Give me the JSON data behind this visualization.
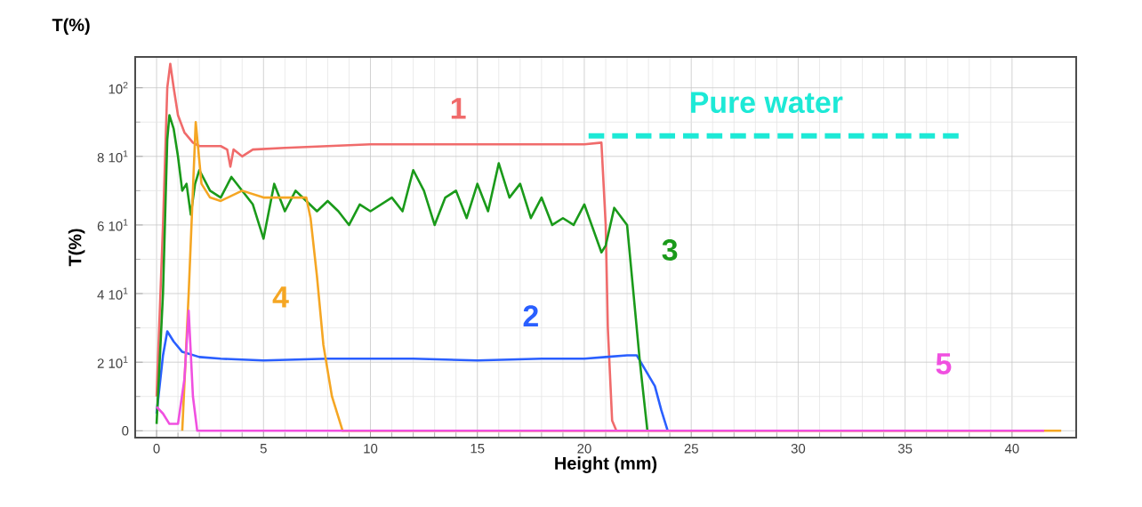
{
  "chart_data": {
    "type": "line",
    "xlabel": "Height (mm)",
    "ylabel": "T(%)",
    "annotations": [
      "T(%)"
    ],
    "xlim": [
      -1,
      43
    ],
    "ylim": [
      -2,
      109
    ],
    "xticks": [
      0,
      5,
      10,
      15,
      20,
      25,
      30,
      35,
      40
    ],
    "yticks": [
      0,
      {
        "value": 20,
        "label": "2 10$^{1}$"
      },
      {
        "value": 40,
        "label": "4 10$^{1}$"
      },
      {
        "value": 60,
        "label": "6 10$^{1}$"
      },
      {
        "value": 80,
        "label": "8 10$^{1}$"
      },
      {
        "value": 100,
        "label": "10$^{2}$"
      }
    ],
    "grid": true,
    "marker": "none",
    "line_style": "solid",
    "series": [
      {
        "name": "1",
        "color": "#f06b6b",
        "x": [
          0,
          0.3,
          0.5,
          0.64,
          0.8,
          1.0,
          1.3,
          1.7,
          2,
          3,
          3.3,
          3.45,
          3.6,
          4,
          4.5,
          6,
          8,
          10,
          12,
          15,
          18,
          20,
          20.8,
          21.0,
          21.1,
          21.3,
          21.5
        ],
        "values": [
          10,
          60,
          100,
          107,
          100,
          92,
          87,
          84,
          83,
          83,
          82,
          77,
          82,
          80,
          82,
          82.5,
          83,
          83.5,
          83.5,
          83.5,
          83.5,
          83.5,
          84,
          60,
          30,
          3,
          0
        ]
      },
      {
        "name": "2",
        "color": "#2a5fff",
        "x": [
          0,
          0.3,
          0.5,
          0.8,
          1.2,
          2,
          3,
          5,
          8,
          12,
          15,
          18,
          20,
          21,
          22,
          22.45,
          23.3,
          23.6,
          23.9
        ],
        "values": [
          5,
          22,
          29,
          26,
          23,
          21.5,
          21,
          20.5,
          21,
          21,
          20.5,
          21,
          21,
          21.5,
          22,
          22,
          13,
          6,
          0
        ]
      },
      {
        "name": "3",
        "color": "#1a9a1a",
        "x": [
          0,
          0.3,
          0.5,
          0.6,
          0.8,
          1,
          1.2,
          1.4,
          1.6,
          1.8,
          2,
          2.5,
          3,
          3.5,
          4,
          4.5,
          5,
          5.5,
          6,
          6.5,
          7,
          7.5,
          8,
          8.5,
          9,
          9.5,
          10,
          11,
          11.5,
          12,
          12.5,
          13,
          13.5,
          14,
          14.5,
          15,
          15.5,
          16,
          16.5,
          17,
          17.5,
          18,
          18.5,
          19,
          19.5,
          20,
          20.8,
          21,
          21.4,
          22,
          22.3,
          22.6,
          22.95
        ],
        "values": [
          2,
          40,
          85,
          92,
          88,
          80,
          70,
          72,
          63,
          72,
          76,
          70,
          68,
          74,
          70,
          66,
          56,
          72,
          64,
          70,
          67,
          64,
          67,
          64,
          60,
          66,
          64,
          68,
          64,
          76,
          70,
          60,
          68,
          70,
          62,
          72,
          64,
          78,
          68,
          72,
          62,
          68,
          60,
          62,
          60,
          66,
          52,
          54,
          65,
          60,
          40,
          20,
          0
        ]
      },
      {
        "name": "4",
        "color": "#f5a623",
        "x": [
          1.2,
          1.5,
          1.83,
          2.1,
          2.5,
          3,
          4,
          5,
          6,
          7,
          7.2,
          7.5,
          7.8,
          8.2,
          8.7,
          42.3
        ],
        "values": [
          0,
          40,
          90,
          72,
          68,
          67,
          70,
          68,
          68,
          68,
          62,
          45,
          25,
          10,
          0,
          0
        ]
      },
      {
        "name": "5",
        "color": "#f050e0",
        "x": [
          0,
          0.3,
          0.6,
          1.0,
          1.3,
          1.5,
          1.7,
          1.9,
          41.5
        ],
        "values": [
          7,
          5,
          2,
          2,
          15,
          35,
          10,
          0,
          0
        ]
      },
      {
        "name": "Pure water",
        "color": "#1de9d6",
        "line_style": "dashed",
        "x": [
          20.2,
          37.5
        ],
        "values": [
          86,
          86
        ]
      }
    ]
  }
}
